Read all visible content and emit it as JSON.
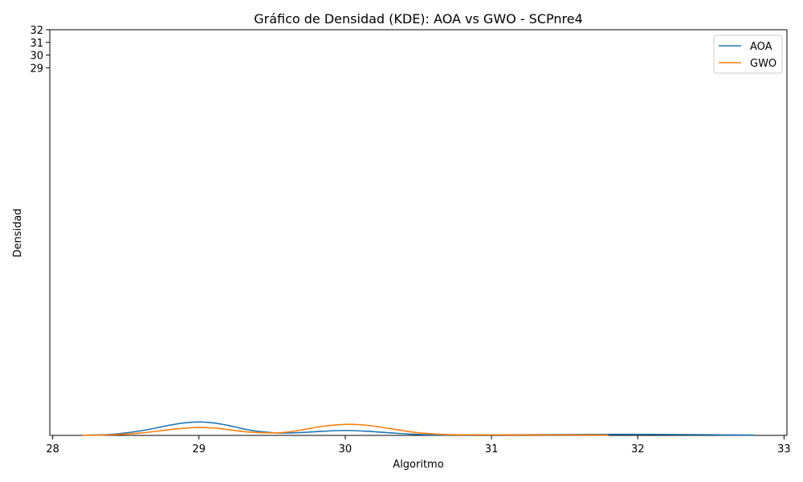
{
  "chart_data": {
    "type": "line",
    "title": "Gráfico de Densidad (KDE): AOA vs GWO - SCPnre4",
    "xlabel": "Algoritmo",
    "ylabel": "Densidad",
    "xlim": [
      27.98,
      33.02
    ],
    "ylim": [
      -0.0078,
      32.0
    ],
    "x_ticks": [
      28,
      29,
      30,
      31,
      32,
      33
    ],
    "y_ticks": [
      29,
      30,
      31,
      32
    ],
    "grid": false,
    "legend_position": "top-right",
    "series": [
      {
        "name": "AOA",
        "color": "#1f77b4",
        "x": [
          28.2,
          28.4,
          28.6,
          28.8,
          28.9,
          29.0,
          29.1,
          29.2,
          29.3,
          29.4,
          29.55,
          29.7,
          29.85,
          30.0,
          30.15,
          30.3,
          30.5,
          30.7,
          31.0,
          31.5,
          32.0,
          32.4,
          32.8
        ],
        "y": [
          0.0,
          0.08,
          0.35,
          0.8,
          0.98,
          1.05,
          0.98,
          0.78,
          0.52,
          0.32,
          0.18,
          0.22,
          0.32,
          0.38,
          0.32,
          0.2,
          0.07,
          0.03,
          0.04,
          0.06,
          0.08,
          0.05,
          0.02
        ]
      },
      {
        "name": "GWO",
        "color": "#ff7f0e",
        "x": [
          28.2,
          28.4,
          28.6,
          28.8,
          28.9,
          29.0,
          29.1,
          29.2,
          29.35,
          29.55,
          29.7,
          29.85,
          30.0,
          30.1,
          30.2,
          30.35,
          30.5,
          30.7,
          31.0,
          31.4,
          31.8
        ],
        "y": [
          0.0,
          0.04,
          0.18,
          0.45,
          0.56,
          0.62,
          0.58,
          0.45,
          0.25,
          0.2,
          0.42,
          0.72,
          0.86,
          0.84,
          0.72,
          0.45,
          0.2,
          0.06,
          0.04,
          0.03,
          0.02
        ]
      }
    ]
  }
}
